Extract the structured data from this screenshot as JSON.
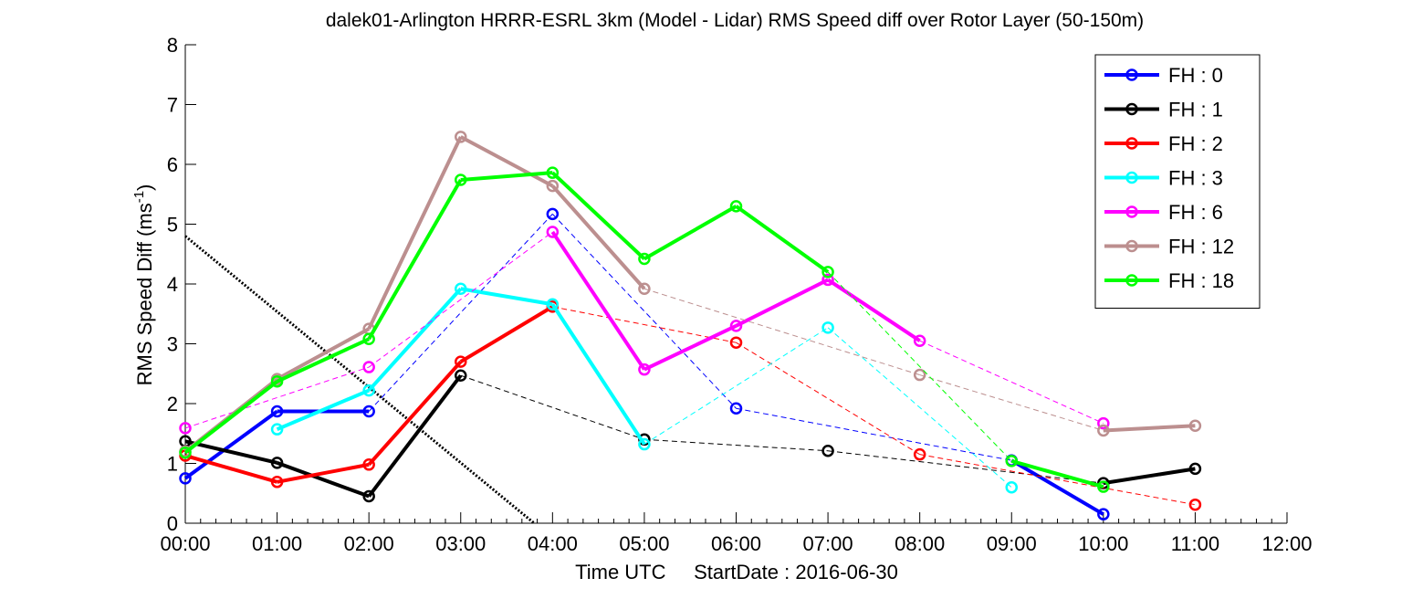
{
  "chart_data": {
    "type": "line",
    "title": "dalek01-Arlington HRRR-ESRL 3km (Model - Lidar) RMS Speed diff over Rotor Layer (50-150m)",
    "xlabel": "Time UTC     StartDate : 2016-06-30",
    "ylabel_main": "RMS Speed Diff (ms",
    "ylabel_sup": "-1",
    "ylabel_end": ")",
    "xlim": [
      0,
      12
    ],
    "ylim": [
      0,
      8
    ],
    "x_ticks": [
      "00:00",
      "01:00",
      "02:00",
      "03:00",
      "04:00",
      "05:00",
      "06:00",
      "07:00",
      "08:00",
      "09:00",
      "10:00",
      "11:00",
      "12:00"
    ],
    "y_ticks": [
      "0",
      "1",
      "2",
      "3",
      "4",
      "5",
      "6",
      "7",
      "8"
    ],
    "grid": false,
    "legend_position": "top-right",
    "reference_line": {
      "style": "dotted",
      "color": "#000000",
      "x": [
        0,
        3.8
      ],
      "y": [
        4.8,
        0
      ]
    },
    "series": [
      {
        "name": "FH : 0",
        "color": "#0000ff",
        "x": [
          0,
          1,
          2,
          4,
          6,
          9,
          10
        ],
        "y": [
          0.75,
          1.87,
          1.87,
          5.17,
          1.92,
          1.05,
          0.15
        ]
      },
      {
        "name": "FH : 1",
        "color": "#000000",
        "x": [
          0,
          1,
          2,
          3,
          5,
          7,
          10,
          11
        ],
        "y": [
          1.37,
          1.01,
          0.45,
          2.47,
          1.4,
          1.21,
          0.67,
          0.91
        ]
      },
      {
        "name": "FH : 2",
        "color": "#ff0000",
        "x": [
          0,
          1,
          2,
          3,
          4,
          6,
          8,
          11
        ],
        "y": [
          1.13,
          0.69,
          0.98,
          2.7,
          3.62,
          3.02,
          1.15,
          0.31
        ]
      },
      {
        "name": "FH : 3",
        "color": "#00ffff",
        "x": [
          1,
          2,
          3,
          4,
          5,
          7,
          9
        ],
        "y": [
          1.57,
          2.22,
          3.92,
          3.66,
          1.32,
          3.27,
          0.6
        ]
      },
      {
        "name": "FH : 6",
        "color": "#ff00ff",
        "x": [
          0,
          2,
          4,
          5,
          6,
          7,
          8,
          10
        ],
        "y": [
          1.59,
          2.61,
          4.87,
          2.57,
          3.3,
          4.07,
          3.05,
          1.67
        ]
      },
      {
        "name": "FH : 12",
        "color": "#bc8f8f",
        "x": [
          0,
          1,
          2,
          3,
          4,
          5,
          8,
          10,
          11
        ],
        "y": [
          1.2,
          2.41,
          3.25,
          6.46,
          5.64,
          3.92,
          2.48,
          1.55,
          1.63
        ]
      },
      {
        "name": "FH : 18",
        "color": "#00ff00",
        "x": [
          0,
          1,
          2,
          3,
          4,
          5,
          6,
          7,
          9,
          10
        ],
        "y": [
          1.18,
          2.37,
          3.08,
          5.74,
          5.86,
          4.42,
          5.3,
          4.2,
          1.04,
          0.61
        ]
      }
    ]
  }
}
